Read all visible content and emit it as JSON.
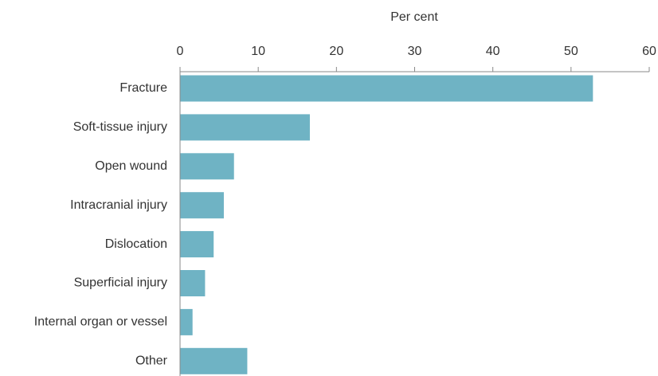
{
  "chart_data": {
    "type": "bar",
    "orientation": "horizontal",
    "x_label": "Per cent",
    "categories": [
      "Fracture",
      "Soft-tissue injury",
      "Open wound",
      "Intracranial injury",
      "Dislocation",
      "Superficial injury",
      "Internal organ or vessel",
      "Other"
    ],
    "values": [
      52.8,
      16.6,
      6.9,
      5.6,
      4.3,
      3.2,
      1.6,
      8.6
    ],
    "color": "#6fb3c4",
    "xlim": [
      0,
      60
    ],
    "xticks": [
      0,
      10,
      20,
      30,
      40,
      50,
      60
    ],
    "grid": false
  }
}
